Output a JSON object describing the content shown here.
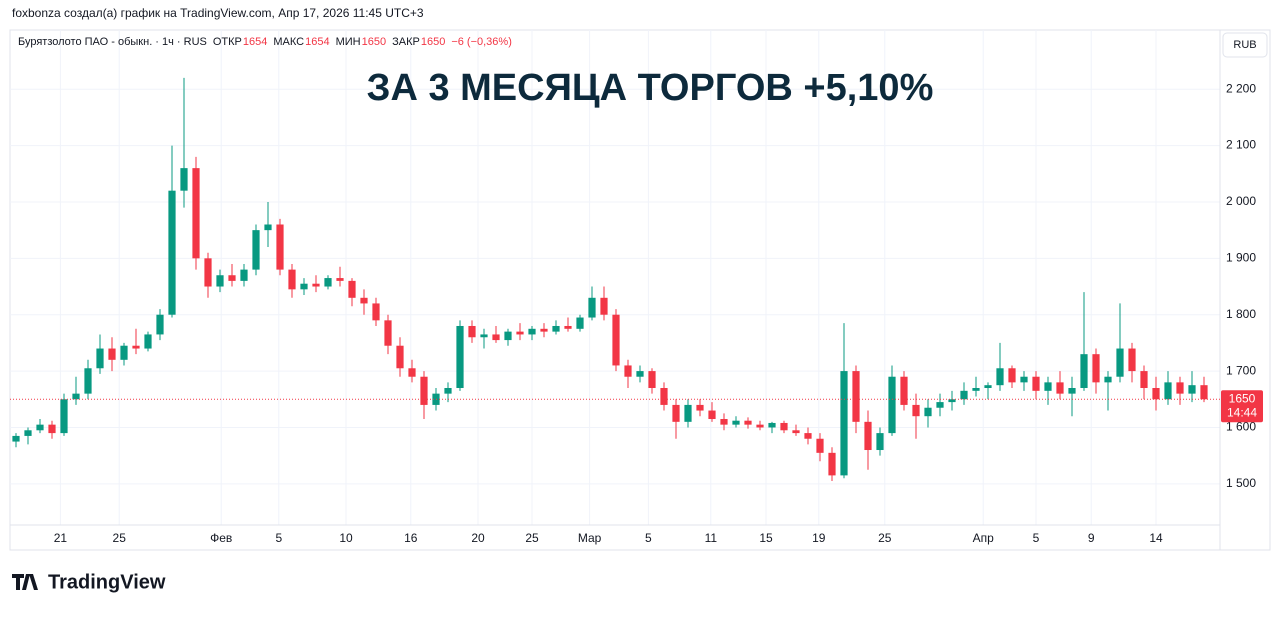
{
  "header": "foxbonza создал(а) график на TradingView.com, Апр 17, 2026 11:45 UTC+3",
  "footer_logo": "TradingView",
  "chart_data": {
    "type": "candlestick",
    "title": "ЗА 3 МЕСЯЦА ТОРГОВ +5,10%",
    "currency": "RUB",
    "legend": {
      "symbol": "Бурятзолото ПАО - обыкн. · 1ч · RUS",
      "open_label": "ОТКР",
      "open": 1654,
      "high_label": "МАКС",
      "high": 1654,
      "low_label": "МИН",
      "low": 1650,
      "close_label": "ЗАКР",
      "close": 1650,
      "change": "−6 (−0,36%)"
    },
    "price_label": {
      "value": 1650,
      "time": "14:44"
    },
    "up_color": "#089981",
    "down_color": "#f23645",
    "grid": true,
    "xlim": [
      -0.5,
      99.5
    ],
    "xticks": [
      {
        "value": 3.7,
        "label": "21"
      },
      {
        "value": 8.6,
        "label": "25"
      },
      {
        "value": 17.1,
        "label": "Фев"
      },
      {
        "value": 21.9,
        "label": "5"
      },
      {
        "value": 27.5,
        "label": "10"
      },
      {
        "value": 32.9,
        "label": "16"
      },
      {
        "value": 38.5,
        "label": "20"
      },
      {
        "value": 43,
        "label": "25"
      },
      {
        "value": 47.8,
        "label": "Мар"
      },
      {
        "value": 52.7,
        "label": "5"
      },
      {
        "value": 57.9,
        "label": "11"
      },
      {
        "value": 62.5,
        "label": "15"
      },
      {
        "value": 66.9,
        "label": "19"
      },
      {
        "value": 72.4,
        "label": "25"
      },
      {
        "value": 80.6,
        "label": "Апр"
      },
      {
        "value": 85,
        "label": "5"
      },
      {
        "value": 89.6,
        "label": "9"
      },
      {
        "value": 95,
        "label": "14"
      }
    ],
    "ylim": [
      1427,
      2305
    ],
    "yticks": [
      {
        "value": 1500,
        "label": "1 500"
      },
      {
        "value": 1600,
        "label": "1 600"
      },
      {
        "value": 1700,
        "label": "1 700"
      },
      {
        "value": 1800,
        "label": "1 800"
      },
      {
        "value": 1900,
        "label": "1 900"
      },
      {
        "value": 2000,
        "label": "2 000"
      },
      {
        "value": 2100,
        "label": "2 100"
      },
      {
        "value": 2200,
        "label": "2 200"
      }
    ],
    "open": [
      1575,
      1585,
      1595,
      1605,
      1590,
      1650,
      1660,
      1705,
      1740,
      1720,
      1745,
      1740,
      1765,
      1800,
      2020,
      2060,
      1900,
      1850,
      1870,
      1860,
      1880,
      1950,
      1960,
      1880,
      1845,
      1855,
      1850,
      1865,
      1860,
      1830,
      1820,
      1790,
      1745,
      1705,
      1690,
      1640,
      1660,
      1670,
      1780,
      1760,
      1765,
      1755,
      1770,
      1765,
      1775,
      1770,
      1780,
      1775,
      1795,
      1830,
      1800,
      1710,
      1690,
      1700,
      1670,
      1640,
      1610,
      1640,
      1630,
      1615,
      1605,
      1612,
      1605,
      1600,
      1608,
      1595,
      1590,
      1580,
      1555,
      1515,
      1700,
      1610,
      1560,
      1590,
      1690,
      1640,
      1620,
      1635,
      1645,
      1650,
      1665,
      1670,
      1675,
      1705,
      1680,
      1690,
      1665,
      1680,
      1660,
      1670,
      1730,
      1680,
      1690,
      1740,
      1700,
      1670,
      1650,
      1680,
      1660,
      1675
    ],
    "high": [
      1590,
      1600,
      1615,
      1612,
      1660,
      1690,
      1720,
      1765,
      1760,
      1750,
      1775,
      1770,
      1810,
      2100,
      2220,
      2080,
      1910,
      1880,
      1890,
      1890,
      1960,
      2000,
      1970,
      1890,
      1865,
      1870,
      1870,
      1885,
      1865,
      1845,
      1830,
      1800,
      1760,
      1720,
      1700,
      1670,
      1680,
      1790,
      1790,
      1775,
      1780,
      1775,
      1785,
      1780,
      1785,
      1790,
      1795,
      1800,
      1850,
      1850,
      1810,
      1720,
      1710,
      1705,
      1680,
      1650,
      1650,
      1650,
      1645,
      1625,
      1620,
      1618,
      1612,
      1610,
      1612,
      1605,
      1600,
      1590,
      1565,
      1785,
      1710,
      1630,
      1600,
      1710,
      1700,
      1660,
      1650,
      1660,
      1665,
      1680,
      1690,
      1680,
      1750,
      1710,
      1700,
      1700,
      1690,
      1700,
      1690,
      1840,
      1740,
      1700,
      1820,
      1750,
      1710,
      1690,
      1700,
      1690,
      1700,
      1690
    ],
    "low": [
      1565,
      1570,
      1590,
      1580,
      1585,
      1640,
      1650,
      1695,
      1700,
      1710,
      1730,
      1735,
      1755,
      1795,
      1990,
      1880,
      1830,
      1840,
      1850,
      1850,
      1870,
      1920,
      1870,
      1830,
      1835,
      1840,
      1845,
      1850,
      1815,
      1800,
      1780,
      1730,
      1690,
      1680,
      1615,
      1630,
      1645,
      1665,
      1750,
      1740,
      1750,
      1745,
      1755,
      1755,
      1760,
      1765,
      1770,
      1770,
      1790,
      1790,
      1700,
      1670,
      1680,
      1660,
      1630,
      1580,
      1600,
      1620,
      1610,
      1595,
      1600,
      1598,
      1595,
      1590,
      1590,
      1585,
      1570,
      1540,
      1505,
      1510,
      1590,
      1525,
      1550,
      1585,
      1630,
      1580,
      1600,
      1620,
      1630,
      1640,
      1655,
      1650,
      1665,
      1670,
      1665,
      1650,
      1640,
      1650,
      1620,
      1665,
      1660,
      1630,
      1680,
      1680,
      1650,
      1630,
      1640,
      1640,
      1645,
      1645
    ],
    "close": [
      1585,
      1595,
      1605,
      1590,
      1650,
      1660,
      1705,
      1740,
      1720,
      1745,
      1740,
      1765,
      1800,
      2020,
      2060,
      1900,
      1850,
      1870,
      1860,
      1880,
      1950,
      1960,
      1880,
      1845,
      1855,
      1850,
      1865,
      1860,
      1830,
      1820,
      1790,
      1745,
      1705,
      1690,
      1640,
      1660,
      1670,
      1780,
      1760,
      1765,
      1755,
      1770,
      1765,
      1775,
      1770,
      1780,
      1775,
      1795,
      1830,
      1800,
      1710,
      1690,
      1700,
      1670,
      1640,
      1610,
      1640,
      1630,
      1615,
      1605,
      1612,
      1605,
      1600,
      1608,
      1595,
      1590,
      1580,
      1555,
      1515,
      1700,
      1610,
      1560,
      1590,
      1690,
      1640,
      1620,
      1635,
      1645,
      1650,
      1665,
      1670,
      1675,
      1705,
      1680,
      1690,
      1665,
      1680,
      1660,
      1670,
      1730,
      1680,
      1690,
      1740,
      1700,
      1670,
      1650,
      1680,
      1660,
      1675,
      1650
    ]
  }
}
